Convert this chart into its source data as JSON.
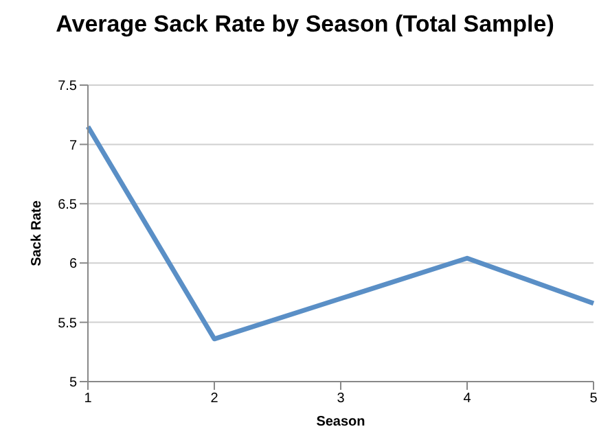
{
  "chart_data": {
    "type": "line",
    "title": "Average Sack Rate by Season (Total Sample)",
    "xlabel": "Season",
    "ylabel": "Sack Rate",
    "categories": [
      "1",
      "2",
      "3",
      "4",
      "5"
    ],
    "series": [
      {
        "color": "#5a8fc6",
        "values": [
          7.15,
          5.36,
          5.7,
          6.04,
          5.66
        ]
      }
    ],
    "ylim": [
      5,
      7.5
    ],
    "yticks": [
      5,
      5.5,
      6,
      6.5,
      7,
      7.5
    ],
    "grid": "y",
    "legend": false,
    "marker": "none",
    "line_style": "solid"
  }
}
